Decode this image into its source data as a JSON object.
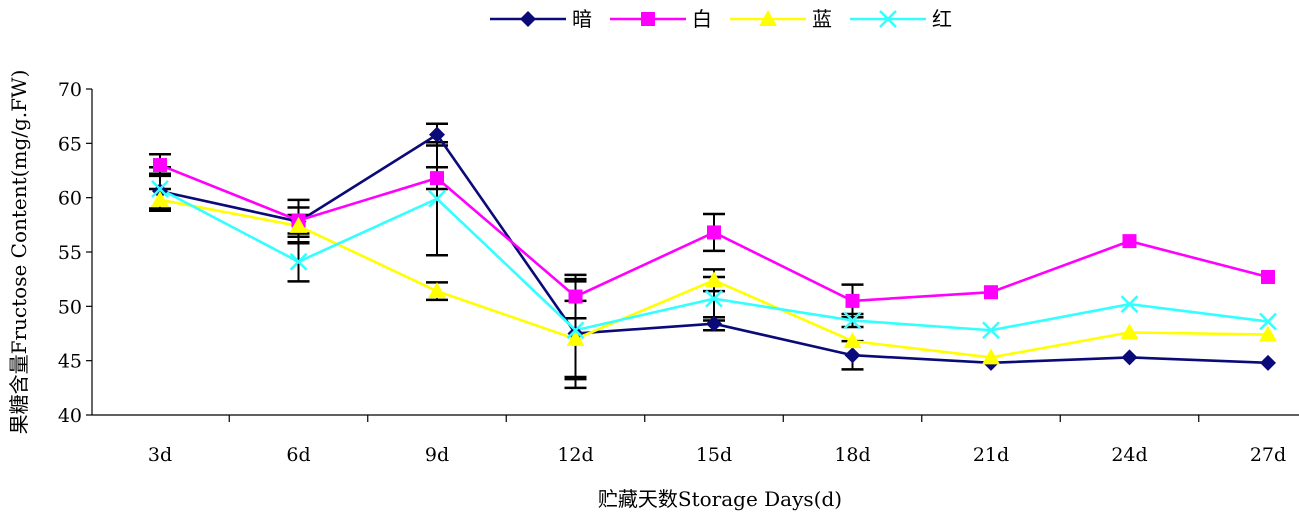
{
  "chart_data": {
    "type": "line",
    "title": "",
    "xlabel": "贮藏天数Storage Days(d)",
    "ylabel": "果糖含量Fructose Content(mg/g.FW)",
    "categories": [
      "3d",
      "6d",
      "9d",
      "12d",
      "15d",
      "18d",
      "21d",
      "24d",
      "27d"
    ],
    "ylim": [
      40,
      70
    ],
    "yticks": [
      40,
      45,
      50,
      55,
      60,
      65,
      70
    ],
    "grid": false,
    "legend_position": "top",
    "series": [
      {
        "name": "暗",
        "color": "#0a0a78",
        "marker": "diamond",
        "values": [
          60.6,
          57.8,
          65.8,
          47.5,
          48.4,
          45.5,
          44.8,
          45.3,
          44.8
        ],
        "errors": [
          1.6,
          2.0,
          1.0,
          5.0,
          0.6,
          1.3,
          null,
          null,
          null
        ]
      },
      {
        "name": "白",
        "color": "#ff00ff",
        "marker": "square",
        "values": [
          63.0,
          57.9,
          61.8,
          50.9,
          56.8,
          50.5,
          51.3,
          56.0,
          52.7
        ],
        "errors": [
          1.0,
          1.2,
          1.0,
          2.0,
          1.7,
          1.5,
          null,
          null,
          null
        ]
      },
      {
        "name": "蓝",
        "color": "#ffff00",
        "marker": "triangle",
        "values": [
          59.8,
          57.4,
          51.4,
          47.0,
          52.4,
          46.8,
          45.3,
          47.6,
          47.4
        ],
        "errors": [
          1.0,
          1.0,
          0.8,
          3.5,
          1.0,
          null,
          null,
          null,
          null
        ]
      },
      {
        "name": "红",
        "color": "#33ffff",
        "marker": "x",
        "values": [
          60.8,
          54.1,
          59.9,
          47.8,
          50.7,
          48.7,
          47.8,
          50.2,
          48.6
        ],
        "errors": [
          2.0,
          1.8,
          5.2,
          4.5,
          2.0,
          0.6,
          null,
          null,
          null
        ]
      }
    ]
  }
}
